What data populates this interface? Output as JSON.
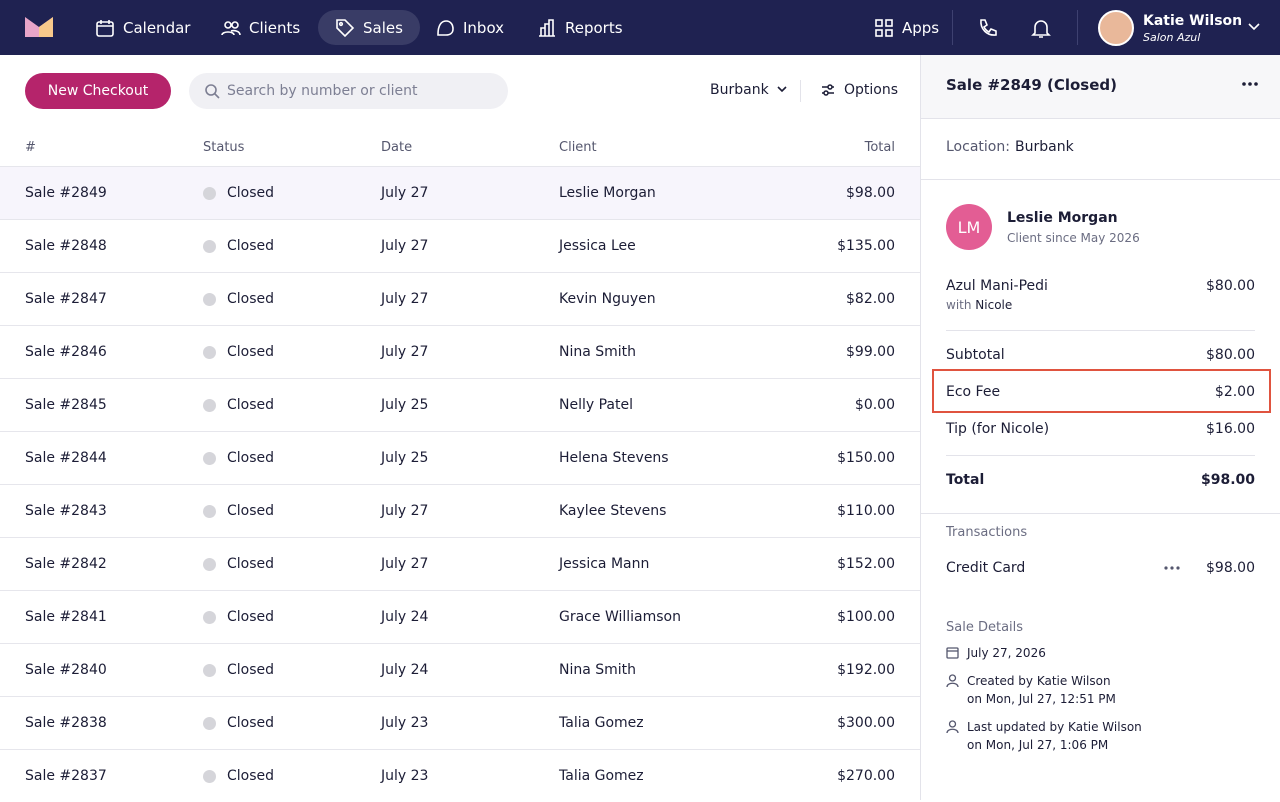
{
  "nav": {
    "items": [
      "Calendar",
      "Clients",
      "Sales",
      "Inbox",
      "Reports"
    ],
    "apps": "Apps",
    "user": {
      "name": "Katie Wilson",
      "salon": "Salon Azul"
    }
  },
  "toolbar": {
    "new_checkout": "New Checkout",
    "search_placeholder": "Search by number or client",
    "location": "Burbank",
    "options": "Options"
  },
  "table": {
    "headers": [
      "#",
      "Status",
      "Date",
      "Client",
      "Total"
    ],
    "rows": [
      [
        "Sale #2849",
        "Closed",
        "July 27",
        "Leslie Morgan",
        "$98.00"
      ],
      [
        "Sale #2848",
        "Closed",
        "July 27",
        "Jessica Lee",
        "$135.00"
      ],
      [
        "Sale #2847",
        "Closed",
        "July 27",
        "Kevin Nguyen",
        "$82.00"
      ],
      [
        "Sale #2846",
        "Closed",
        "July 27",
        "Nina Smith",
        "$99.00"
      ],
      [
        "Sale #2845",
        "Closed",
        "July 25",
        "Nelly Patel",
        "$0.00"
      ],
      [
        "Sale #2844",
        "Closed",
        "July 25",
        "Helena Stevens",
        "$150.00"
      ],
      [
        "Sale #2843",
        "Closed",
        "July 27",
        "Kaylee Stevens",
        "$110.00"
      ],
      [
        "Sale #2842",
        "Closed",
        "July 27",
        "Jessica Mann",
        "$152.00"
      ],
      [
        "Sale #2841",
        "Closed",
        "July 24",
        "Grace Williamson",
        "$100.00"
      ],
      [
        "Sale #2840",
        "Closed",
        "July 24",
        "Nina Smith",
        "$192.00"
      ],
      [
        "Sale #2838",
        "Closed",
        "July 23",
        "Talia Gomez",
        "$300.00"
      ],
      [
        "Sale #2837",
        "Closed",
        "July 23",
        "Talia Gomez",
        "$270.00"
      ]
    ]
  },
  "detail": {
    "title": "Sale #2849 (Closed)",
    "location_label": "Location:",
    "location": "Burbank",
    "client": {
      "initials": "LM",
      "name": "Leslie Morgan",
      "since": "Client since May 2026"
    },
    "service": {
      "name": "Azul Mani-Pedi",
      "with": "with",
      "staff": "Nicole",
      "price": "$80.00"
    },
    "lines": [
      [
        "Subtotal",
        "$80.00"
      ],
      [
        "Eco Fee",
        "$2.00"
      ],
      [
        "Tip (for Nicole)",
        "$16.00"
      ]
    ],
    "total": [
      "Total",
      "$98.00"
    ],
    "transactions_label": "Transactions",
    "transactions": [
      [
        "Credit Card",
        "$98.00"
      ]
    ],
    "details_label": "Sale Details",
    "date": "July 27, 2026",
    "created": [
      "Created by Katie Wilson",
      "on Mon, Jul 27, 12:51 PM"
    ],
    "updated": [
      "Last updated by Katie Wilson",
      "on Mon, Jul 27, 1:06 PM"
    ]
  }
}
